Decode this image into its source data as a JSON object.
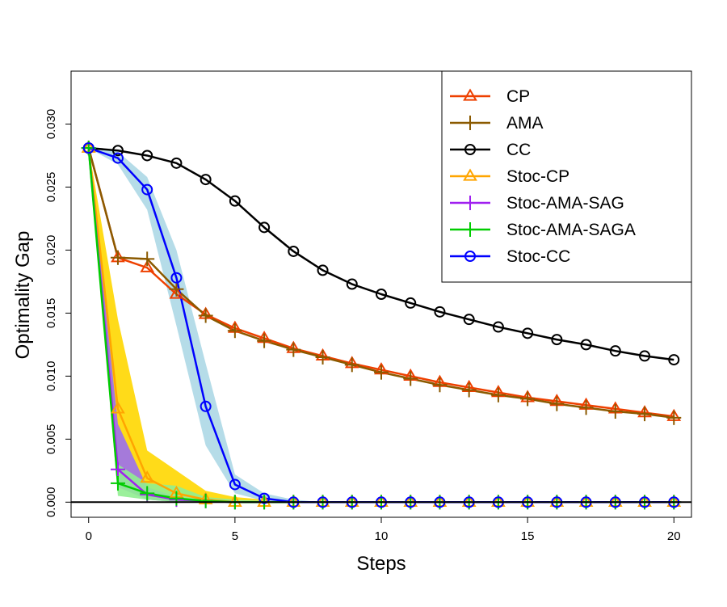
{
  "chart_data": {
    "type": "line",
    "title": "",
    "xlabel": "Steps",
    "ylabel": "Optimality Gap",
    "xlim": [
      -0.6,
      20.6
    ],
    "ylim": [
      -0.0012,
      0.0342
    ],
    "x_ticks": [
      0,
      5,
      10,
      15,
      20
    ],
    "y_ticks": [
      0.0,
      0.005,
      0.01,
      0.015,
      0.02,
      0.025,
      0.03
    ],
    "x_tick_labels": [
      "0",
      "5",
      "10",
      "15",
      "20"
    ],
    "y_tick_labels": [
      "0.000",
      "0.005",
      "0.010",
      "0.015",
      "0.020",
      "0.025",
      "0.030"
    ],
    "hline": 0,
    "legend_position": "top-right",
    "x": [
      0,
      1,
      2,
      3,
      4,
      5,
      6,
      7,
      8,
      9,
      10,
      11,
      12,
      13,
      14,
      15,
      16,
      17,
      18,
      19,
      20
    ],
    "series": [
      {
        "name": "CP",
        "color": "#ee4000",
        "marker": "triangle",
        "marker_every": 1,
        "values": [
          0.0281,
          0.0194,
          0.0186,
          0.0165,
          0.0149,
          0.0138,
          0.013,
          0.0122,
          0.0116,
          0.011,
          0.0105,
          0.01,
          0.0095,
          0.0091,
          0.0087,
          0.0083,
          0.008,
          0.0077,
          0.0074,
          0.0071,
          0.0068
        ]
      },
      {
        "name": "AMA",
        "color": "#8b5a00",
        "marker": "plus",
        "marker_every": 1,
        "values": [
          0.0281,
          0.0194,
          0.0193,
          0.0169,
          0.0148,
          0.0136,
          0.0128,
          0.0121,
          0.0115,
          0.0109,
          0.0103,
          0.0098,
          0.0093,
          0.0089,
          0.0085,
          0.0082,
          0.0078,
          0.0075,
          0.0072,
          0.007,
          0.0067
        ]
      },
      {
        "name": "CC",
        "color": "#000000",
        "marker": "circle",
        "marker_every": 1,
        "values": [
          0.0281,
          0.0279,
          0.0275,
          0.0269,
          0.0256,
          0.0239,
          0.0218,
          0.0199,
          0.0184,
          0.0173,
          0.0165,
          0.0158,
          0.0151,
          0.0145,
          0.0139,
          0.0134,
          0.0129,
          0.0125,
          0.012,
          0.0116,
          0.0113
        ]
      },
      {
        "name": "Stoc-CP",
        "color": "#ffa500",
        "marker": "triangle",
        "marker_every": 1,
        "values": [
          0.0281,
          0.0074,
          0.0019,
          0.0007,
          0.0002,
          0.0,
          0.0,
          0.0,
          0.0,
          0.0,
          0.0,
          0.0,
          0.0,
          0.0,
          0.0,
          0.0,
          0.0,
          0.0,
          0.0,
          0.0,
          0.0
        ],
        "band_lower": [
          0.0281,
          0.003,
          0.0006,
          0.0002,
          0.0,
          0.0,
          0.0,
          0.0,
          0.0,
          0.0,
          0.0,
          0.0,
          0.0,
          0.0,
          0.0,
          0.0,
          0.0,
          0.0,
          0.0,
          0.0,
          0.0
        ],
        "band_upper": [
          0.0281,
          0.0145,
          0.0041,
          0.0025,
          0.0009,
          0.0004,
          0.0002,
          0.0001,
          0.0,
          0.0,
          0.0,
          0.0,
          0.0,
          0.0,
          0.0,
          0.0,
          0.0,
          0.0,
          0.0,
          0.0,
          0.0
        ],
        "band_color": "#ffd700"
      },
      {
        "name": "Stoc-AMA-SAG",
        "color": "#a020f0",
        "marker": "plus",
        "marker_every": 1,
        "values": [
          0.0281,
          0.0026,
          0.0006,
          0.0002,
          0.0001,
          0.0,
          0.0,
          0.0,
          0.0,
          0.0,
          0.0,
          0.0,
          0.0,
          0.0,
          0.0,
          0.0,
          0.0,
          0.0,
          0.0,
          0.0,
          0.0
        ],
        "band_lower": [
          0.0281,
          0.0012,
          0.0002,
          0.0,
          0.0,
          0.0,
          0.0,
          0.0,
          0.0,
          0.0,
          0.0,
          0.0,
          0.0,
          0.0,
          0.0,
          0.0,
          0.0,
          0.0,
          0.0,
          0.0,
          0.0
        ],
        "band_upper": [
          0.0281,
          0.0062,
          0.0012,
          0.0004,
          0.0002,
          0.0,
          0.0,
          0.0,
          0.0,
          0.0,
          0.0,
          0.0,
          0.0,
          0.0,
          0.0,
          0.0,
          0.0,
          0.0,
          0.0,
          0.0,
          0.0
        ],
        "band_color": "#9b6ff0"
      },
      {
        "name": "Stoc-AMA-SAGA",
        "color": "#00cd00",
        "marker": "plus",
        "marker_every": 1,
        "values": [
          0.0281,
          0.0015,
          0.0007,
          0.0003,
          0.0001,
          0.0,
          0.0,
          0.0,
          0.0,
          0.0,
          0.0,
          0.0,
          0.0,
          0.0,
          0.0,
          0.0,
          0.0,
          0.0,
          0.0,
          0.0,
          0.0
        ],
        "band_lower": [
          0.0281,
          0.0005,
          0.0002,
          0.0,
          0.0,
          0.0,
          0.0,
          0.0,
          0.0,
          0.0,
          0.0,
          0.0,
          0.0,
          0.0,
          0.0,
          0.0,
          0.0,
          0.0,
          0.0,
          0.0,
          0.0
        ],
        "band_upper": [
          0.0281,
          0.003,
          0.0015,
          0.0013,
          0.0004,
          0.0002,
          0.0001,
          0.0,
          0.0,
          0.0,
          0.0,
          0.0,
          0.0,
          0.0,
          0.0,
          0.0,
          0.0,
          0.0,
          0.0,
          0.0,
          0.0
        ],
        "band_color": "#90ee90"
      },
      {
        "name": "Stoc-CC",
        "color": "#0000ff",
        "marker": "circle",
        "marker_every": 1,
        "values": [
          0.0281,
          0.0273,
          0.0248,
          0.0178,
          0.0076,
          0.0014,
          0.0003,
          0.0,
          0.0,
          0.0,
          0.0,
          0.0,
          0.0,
          0.0,
          0.0,
          0.0,
          0.0,
          0.0,
          0.0,
          0.0,
          0.0
        ],
        "band_lower": [
          0.0281,
          0.0268,
          0.0232,
          0.014,
          0.0045,
          0.0007,
          0.0001,
          0.0,
          0.0,
          0.0,
          0.0,
          0.0,
          0.0,
          0.0,
          0.0,
          0.0,
          0.0,
          0.0,
          0.0,
          0.0,
          0.0
        ],
        "band_upper": [
          0.0281,
          0.0278,
          0.0258,
          0.02,
          0.011,
          0.0022,
          0.0007,
          0.0002,
          0.0,
          0.0,
          0.0,
          0.0,
          0.0,
          0.0,
          0.0,
          0.0,
          0.0,
          0.0,
          0.0,
          0.0,
          0.0
        ],
        "band_color": "#add8e6"
      }
    ]
  }
}
